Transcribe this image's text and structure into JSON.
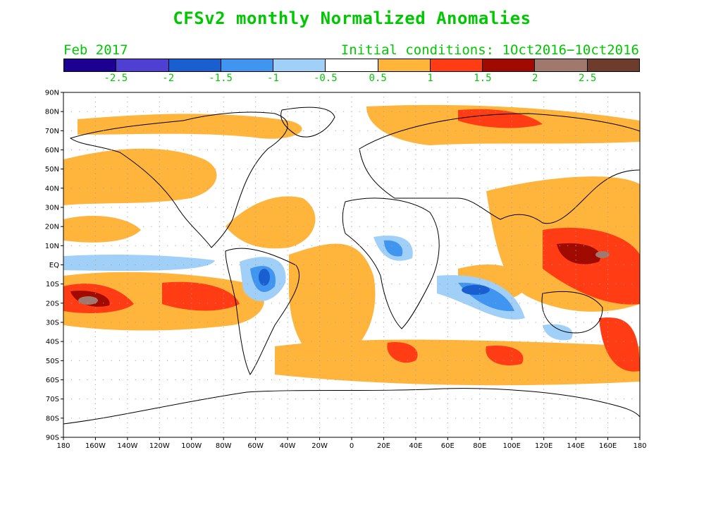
{
  "title": "CFSv2 monthly Normalized Anomalies",
  "subtitle_left": "Feb 2017",
  "subtitle_right": "Initial conditions: 1Oct2016−10ct2016",
  "colors": {
    "title_text": "#00c800",
    "land_outline": "#000000",
    "grid_dots": "#a0a0a0"
  },
  "colorbar": {
    "segments": [
      "#1c0090",
      "#4f3fd3",
      "#1a5fcf",
      "#3f95ef",
      "#a0d0f8",
      "#ffffff",
      "#ffb43c",
      "#ff3c14",
      "#a00a00",
      "#a0786e",
      "#6e3c2d"
    ],
    "labels": [
      "-2.5",
      "-2",
      "-1.5",
      "-1",
      "-0.5",
      "0.5",
      "1",
      "1.5",
      "2",
      "2.5"
    ]
  },
  "axes": {
    "lat_labels": [
      "90N",
      "80N",
      "70N",
      "60N",
      "50N",
      "40N",
      "30N",
      "20N",
      "10N",
      "EQ",
      "10S",
      "20S",
      "30S",
      "40S",
      "50S",
      "60S",
      "70S",
      "80S",
      "90S"
    ],
    "lon_labels": [
      "180",
      "160W",
      "140W",
      "120W",
      "100W",
      "80W",
      "60W",
      "40W",
      "20W",
      "0",
      "20E",
      "40E",
      "60E",
      "80E",
      "100E",
      "120E",
      "140E",
      "160E",
      "180"
    ]
  }
}
